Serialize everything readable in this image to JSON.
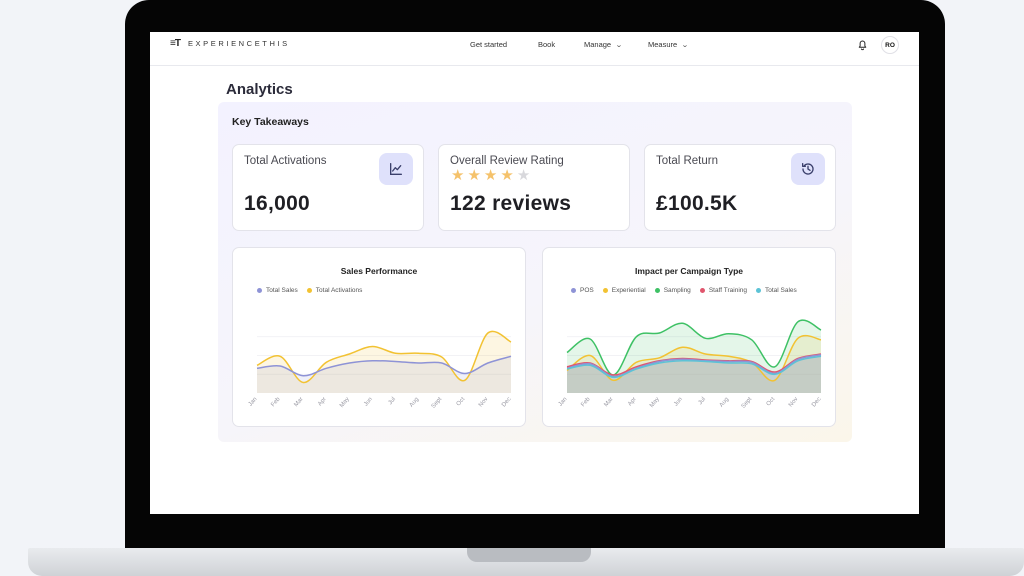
{
  "nav": {
    "logo_mark": "≡T",
    "logo_text": "EXPERIENCETHIS",
    "links": [
      {
        "label": "Get started",
        "dropdown": false
      },
      {
        "label": "Book",
        "dropdown": false
      },
      {
        "label": "Manage",
        "dropdown": true
      },
      {
        "label": "Measure",
        "dropdown": true
      }
    ],
    "bell_icon": "bell-icon",
    "avatar_initials": "RO"
  },
  "page": {
    "title": "Analytics"
  },
  "takeaways": {
    "title": "Key Takeaways",
    "cards": [
      {
        "label": "Total Activations",
        "value": "16,000",
        "icon": "line-chart-icon"
      },
      {
        "label": "Overall Review Rating",
        "value": "122 reviews",
        "rating": 4,
        "max_rating": 5
      },
      {
        "label": "Total Return",
        "value": "£100.5K",
        "icon": "history-icon"
      }
    ]
  },
  "colors": {
    "purple": "#8e93d6",
    "yellow": "#f2c232",
    "green": "#3ec165",
    "red": "#e0566d",
    "teal": "#5cc3d6",
    "star_on": "#f5c26b",
    "star_off": "#d8d8dc"
  },
  "chart_data": [
    {
      "type": "area",
      "title": "Sales Performance",
      "x": [
        "Jan",
        "Feb",
        "Mar",
        "Apr",
        "May",
        "Jun",
        "Jul",
        "Aug",
        "Sept",
        "Oct",
        "Nov",
        "Dec"
      ],
      "series": [
        {
          "name": "Total Sales",
          "color": "#8e93d6",
          "values": [
            33,
            36,
            23,
            33,
            40,
            43,
            42,
            40,
            40,
            26,
            40,
            49
          ]
        },
        {
          "name": "Total Activations",
          "color": "#f2c232",
          "values": [
            37,
            49,
            14,
            41,
            52,
            62,
            53,
            53,
            48,
            17,
            80,
            68
          ]
        }
      ],
      "ylim": [
        0,
        100
      ],
      "grid": true,
      "legend": "top-left"
    },
    {
      "type": "area",
      "title": "Impact per Campaign Type",
      "x": [
        "Jan",
        "Feb",
        "Mar",
        "Apr",
        "May",
        "Jun",
        "Jul",
        "Aug",
        "Sept",
        "Oct",
        "Nov",
        "Dec"
      ],
      "series": [
        {
          "name": "POS",
          "color": "#8e93d6",
          "values": [
            33,
            39,
            22,
            33,
            42,
            45,
            43,
            42,
            41,
            26,
            45,
            51
          ]
        },
        {
          "name": "Experiential",
          "color": "#f2c232",
          "values": [
            30,
            50,
            17,
            41,
            47,
            61,
            52,
            49,
            41,
            17,
            73,
            71
          ]
        },
        {
          "name": "Sampling",
          "color": "#3ec165",
          "values": [
            54,
            72,
            24,
            75,
            80,
            93,
            73,
            79,
            71,
            35,
            95,
            84
          ]
        },
        {
          "name": "Staff Training",
          "color": "#e0566d",
          "values": [
            35,
            40,
            24,
            35,
            43,
            46,
            44,
            43,
            42,
            28,
            46,
            52
          ]
        },
        {
          "name": "Total Sales",
          "color": "#5cc3d6",
          "values": [
            32,
            37,
            21,
            32,
            40,
            43,
            42,
            40,
            39,
            25,
            43,
            49
          ]
        }
      ],
      "ylim": [
        0,
        100
      ],
      "grid": true,
      "legend": "top-center"
    }
  ]
}
